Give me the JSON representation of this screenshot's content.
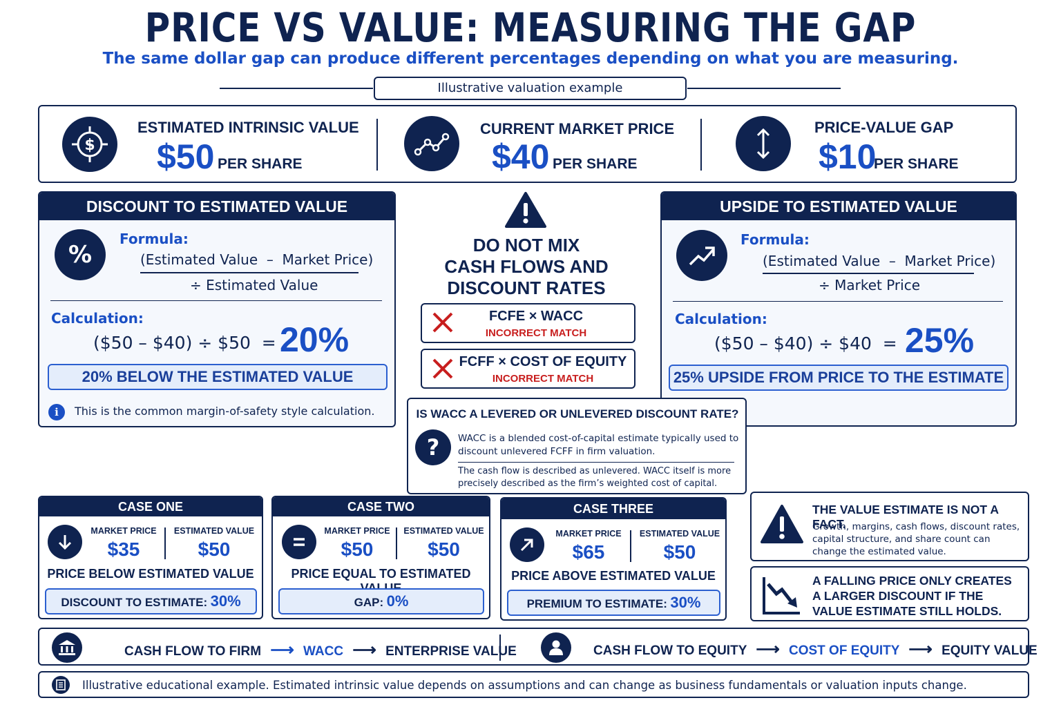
{
  "header": {
    "title": "PRICE VS VALUE: MEASURING THE GAP",
    "subtitle": "The same dollar gap can produce different percentages depending on what you are measuring.",
    "tag": "Illustrative valuation example"
  },
  "summary": [
    {
      "label": "ESTIMATED INTRINSIC VALUE",
      "value": "$50",
      "unit": "PER SHARE",
      "icon": "target-dollar-icon"
    },
    {
      "label": "CURRENT MARKET PRICE",
      "value": "$40",
      "unit": "PER SHARE",
      "icon": "line-chart-icon"
    },
    {
      "label": "PRICE-VALUE GAP",
      "value": "$10",
      "unit": "PER SHARE",
      "icon": "vertical-arrows-icon"
    }
  ],
  "discount": {
    "title": "DISCOUNT TO ESTIMATED VALUE",
    "formula_label": "Formula:",
    "numerator": "(Estimated Value  –  Market Price)",
    "denominator": "÷ Estimated Value",
    "calc_label": "Calculation:",
    "calc": "($50 – $40) ÷ $50  =",
    "result": "20%",
    "banner": "20% BELOW THE ESTIMATED VALUE",
    "note": "This is the common margin-of-safety style calculation."
  },
  "upside": {
    "title": "UPSIDE TO ESTIMATED VALUE",
    "formula_label": "Formula:",
    "numerator": "(Estimated Value  –  Market Price)",
    "denominator": "÷ Market Price",
    "calc_label": "Calculation:",
    "calc": "($50 – $40) ÷ $40  =",
    "result": "25%",
    "banner": "25% UPSIDE FROM PRICE TO THE ESTIMATE"
  },
  "warning": {
    "title_lines": [
      "DO NOT MIX",
      "CASH FLOWS AND",
      "DISCOUNT RATES"
    ],
    "items": [
      {
        "pair": "FCFE × WACC",
        "verdict": "INCORRECT MATCH"
      },
      {
        "pair": "FCFF × COST OF EQUITY",
        "verdict": "INCORRECT MATCH"
      }
    ]
  },
  "question": {
    "title": "IS WACC A LEVERED OR UNLEVERED DISCOUNT RATE?",
    "text1": "WACC is a blended cost-of-capital estimate typically used to discount unlevered FCFF in firm valuation.",
    "text2": "The cash flow is described as unlevered. WACC itself is more precisely described as the firm’s weighted cost of capital."
  },
  "cases": [
    {
      "title": "CASE ONE",
      "icon": "arrow-down-icon",
      "mp_label": "MARKET PRICE",
      "mp": "$35",
      "ev_label": "ESTIMATED VALUE",
      "ev": "$50",
      "desc": "PRICE BELOW ESTIMATED VALUE",
      "res_label": "DISCOUNT TO ESTIMATE:",
      "res": "30%"
    },
    {
      "title": "CASE TWO",
      "icon": "equals-icon",
      "mp_label": "MARKET PRICE",
      "mp": "$50",
      "ev_label": "ESTIMATED VALUE",
      "ev": "$50",
      "desc": "PRICE EQUAL TO ESTIMATED VALUE",
      "res_label": "GAP:",
      "res": "0%"
    },
    {
      "title": "CASE THREE",
      "icon": "arrow-up-right-icon",
      "mp_label": "MARKET PRICE",
      "mp": "$65",
      "ev_label": "ESTIMATED VALUE",
      "ev": "$50",
      "desc": "PRICE ABOVE ESTIMATED VALUE",
      "res_label": "PREMIUM TO ESTIMATE:",
      "res": "30%"
    }
  ],
  "notes": {
    "fact_title": "THE VALUE ESTIMATE IS NOT A FACT.",
    "fact_text": "Growth, margins, cash flows, discount rates, capital structure, and share count can change the estimated value.",
    "falling_text": "A FALLING PRICE ONLY CREATES A LARGER DISCOUNT IF THE VALUE ESTIMATE STILL HOLDS."
  },
  "flows": {
    "firm": [
      "CASH FLOW TO FIRM",
      "WACC",
      "ENTERPRISE VALUE"
    ],
    "equity": [
      "CASH FLOW TO EQUITY",
      "COST OF EQUITY",
      "EQUITY VALUE"
    ]
  },
  "footer": "Illustrative educational example. Estimated intrinsic value depends on assumptions and can change as business fundamentals or valuation inputs change.",
  "colors": {
    "navy": "#0f2350",
    "blue": "#1a4fc4",
    "red": "#c81e1e",
    "highlight": "#e4edfb"
  }
}
